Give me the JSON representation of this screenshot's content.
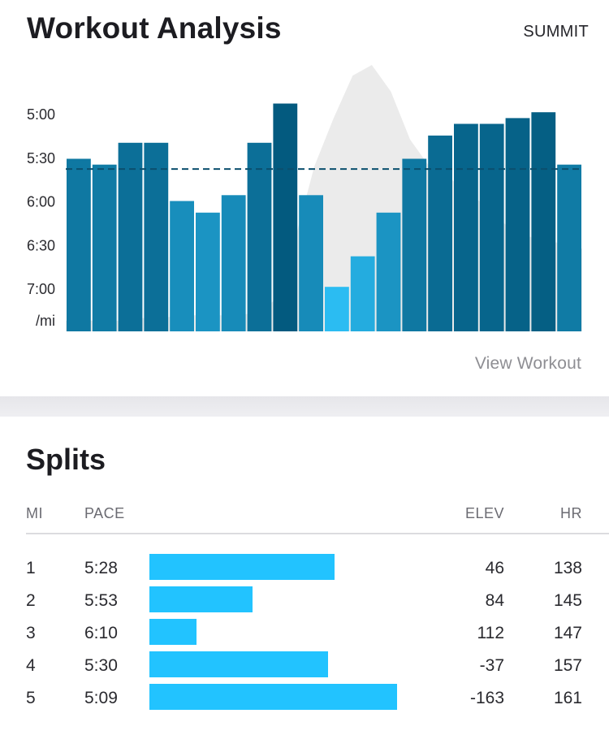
{
  "header": {
    "title": "Workout Analysis",
    "brand": "SUMMIT"
  },
  "view_workout_label": "View Workout",
  "colors": {
    "bar_light": "#2bbcf2",
    "bar_dark": "#035a7f",
    "elevation_fill": "#ebebeb",
    "average_line": "#0b4f6e",
    "split_bar": "#22c3ff"
  },
  "chart_data": {
    "type": "bar",
    "title": "",
    "ylabel": "/mi",
    "y_ticks": [
      "5:00",
      "5:30",
      "6:00",
      "6:30",
      "7:00"
    ],
    "y_unit_label": "/mi",
    "pace_axis_seconds": [
      300,
      330,
      360,
      390,
      420
    ],
    "pace_seconds": [
      331,
      335,
      320,
      320,
      360,
      368,
      356,
      320,
      293,
      356,
      419,
      398,
      368,
      331,
      315,
      307,
      307,
      303,
      299,
      335
    ],
    "average_pace_seconds": 338,
    "elevation_profile": [
      4,
      4,
      4,
      4,
      5,
      5,
      6,
      6,
      6,
      6,
      7,
      12,
      35,
      62,
      80,
      96,
      100,
      90,
      72,
      62,
      58,
      52,
      47,
      40,
      36,
      34,
      33,
      31
    ],
    "grid": false,
    "legend": "none"
  },
  "splits": {
    "title": "Splits",
    "columns": {
      "mi": "MI",
      "pace": "PACE",
      "elev": "ELEV",
      "hr": "HR"
    },
    "rows": [
      {
        "mi": "1",
        "pace": "5:28",
        "pace_seconds": 328,
        "elev": "46",
        "hr": "138"
      },
      {
        "mi": "2",
        "pace": "5:53",
        "pace_seconds": 353,
        "elev": "84",
        "hr": "145"
      },
      {
        "mi": "3",
        "pace": "6:10",
        "pace_seconds": 370,
        "elev": "112",
        "hr": "147"
      },
      {
        "mi": "4",
        "pace": "5:30",
        "pace_seconds": 330,
        "elev": "-37",
        "hr": "157"
      },
      {
        "mi": "5",
        "pace": "5:09",
        "pace_seconds": 309,
        "elev": "-163",
        "hr": "161"
      }
    ]
  }
}
